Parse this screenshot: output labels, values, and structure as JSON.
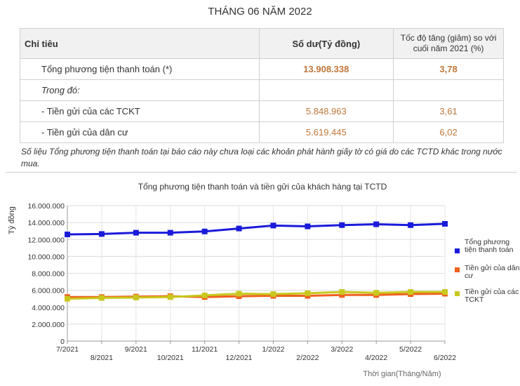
{
  "title": "THÁNG 06 NĂM 2022",
  "table": {
    "headers": [
      "Chỉ tiêu",
      "Số dư(Tỷ đồng)",
      "Tốc độ tăng (giảm) so với cuối năm 2021 (%)"
    ],
    "rows": [
      {
        "label": "Tổng phương tiện thanh toán (*)",
        "balance": "13.908.338",
        "growth": "3,78"
      },
      {
        "label": "Trong đó:",
        "balance": "",
        "growth": ""
      },
      {
        "label": "- Tiền gửi của các TCKT",
        "balance": "5.848.963",
        "growth": "3,61"
      },
      {
        "label": " - Tiền gửi của dân cư",
        "balance": "5.619.445",
        "growth": "6,02"
      }
    ]
  },
  "note": "Số liệu Tổng phương tiện thanh toán tại báo cáo này chưa loại các khoản phát hành giấy tờ có giá do các TCTD khác trong nước mua.",
  "chart_data": {
    "type": "line",
    "title": "Tổng phương tiện thanh toán và tiền gửi của khách hàng tại TCTD",
    "xlabel": "Thời gian(Tháng/Năm)",
    "ylabel": "Tỷ đồng",
    "categories": [
      "7/2021",
      "8/2021",
      "9/2021",
      "10/2021",
      "11/2021",
      "12/2021",
      "1/2022",
      "2/2022",
      "3/2022",
      "4/2022",
      "5/2022",
      "6/2022"
    ],
    "ylim": [
      0,
      16000000
    ],
    "yticks": [
      "0",
      "2.000.000",
      "4.000.000",
      "6.000.000",
      "8.000.000",
      "10.000.000",
      "12.000.000",
      "14.000.000",
      "16.000.000"
    ],
    "grid": true,
    "legend_position": "right",
    "series": [
      {
        "name": "Tổng phương tiện thanh toán",
        "color": "#1a1adb",
        "values": [
          12600000,
          12650000,
          12800000,
          12800000,
          12950000,
          13300000,
          13650000,
          13550000,
          13700000,
          13800000,
          13700000,
          13850000
        ]
      },
      {
        "name": "Tiền gửi của dân cư",
        "color": "#f0601e",
        "values": [
          5200000,
          5200000,
          5250000,
          5300000,
          5200000,
          5300000,
          5350000,
          5350000,
          5450000,
          5450000,
          5550000,
          5600000
        ]
      },
      {
        "name": "Tiền gửi của các TCKT",
        "color": "#c8c81e",
        "values": [
          5000000,
          5100000,
          5150000,
          5200000,
          5400000,
          5600000,
          5550000,
          5650000,
          5800000,
          5700000,
          5800000,
          5800000
        ]
      }
    ]
  }
}
